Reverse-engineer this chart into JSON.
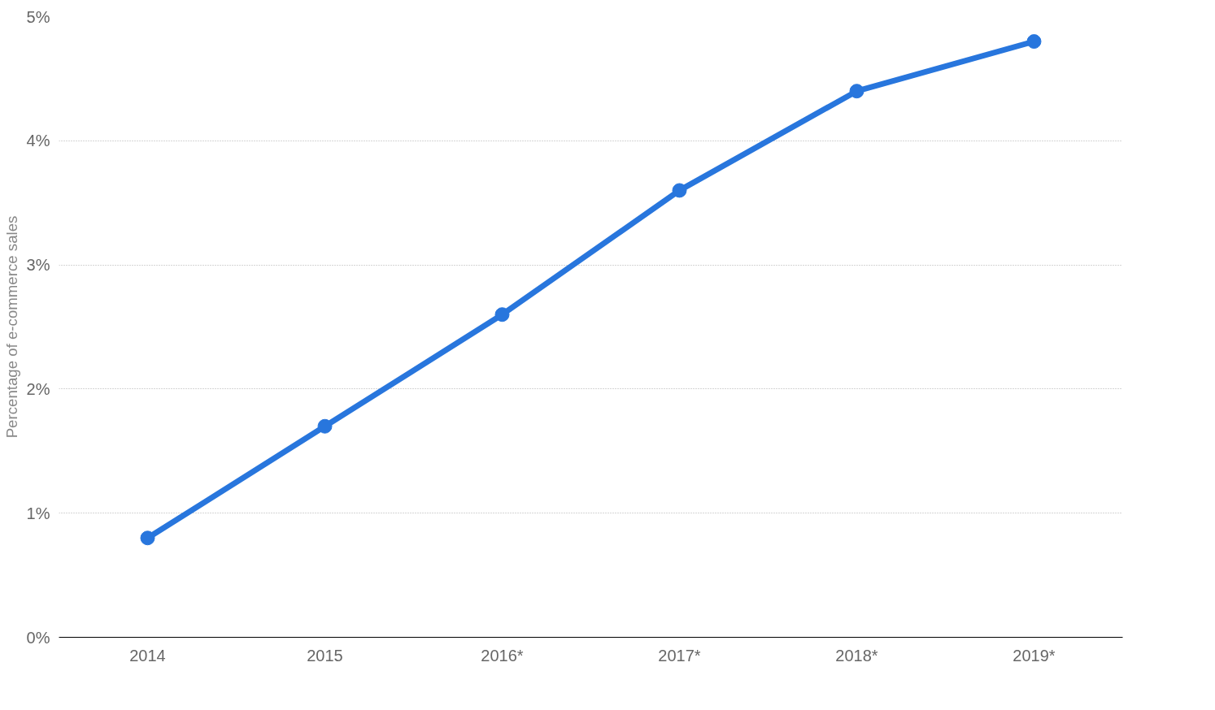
{
  "chart_data": {
    "type": "line",
    "ylabel": "Percentage of e-commerce sales",
    "categories": [
      "2014",
      "2015",
      "2016*",
      "2017*",
      "2018*",
      "2019*"
    ],
    "series": [
      {
        "color": "#2876dd",
        "values": [
          0.8,
          1.7,
          2.6,
          3.6,
          4.4,
          4.8
        ]
      }
    ],
    "ylim": [
      0,
      5
    ],
    "yticks": [
      {
        "value": 0,
        "label": "0%"
      },
      {
        "value": 1,
        "label": "1%"
      },
      {
        "value": 2,
        "label": "2%"
      },
      {
        "value": 3,
        "label": "3%"
      },
      {
        "value": 4,
        "label": "4%"
      },
      {
        "value": 5,
        "label": "5%"
      }
    ],
    "grid": "y",
    "marker": "circle",
    "line_style": "solid"
  }
}
